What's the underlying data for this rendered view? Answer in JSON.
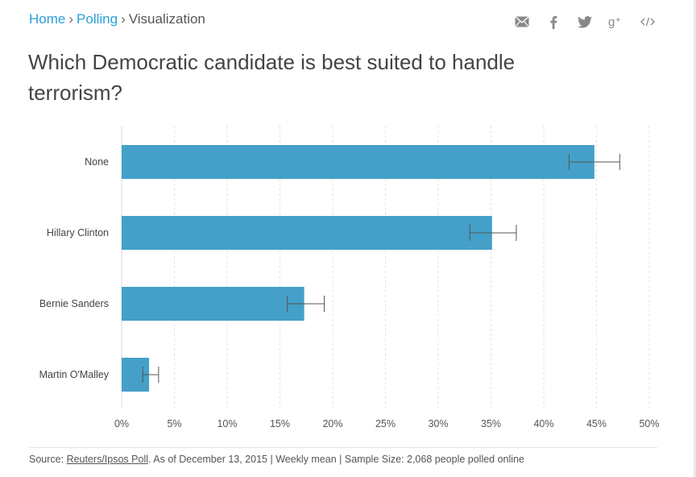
{
  "breadcrumb": {
    "home": "Home",
    "polling": "Polling",
    "current": "Visualization",
    "separator": "›"
  },
  "share_icons": [
    "email-icon",
    "facebook-icon",
    "twitter-icon",
    "google-plus-icon",
    "embed-code-icon"
  ],
  "title": "Which Democratic candidate is best suited to handle terrorism?",
  "chart_data": {
    "type": "bar",
    "orientation": "horizontal",
    "title": "Which Democratic candidate is best suited to handle terrorism?",
    "categories": [
      "None",
      "Hillary Clinton",
      "Bernie Sanders",
      "Martin O'Malley"
    ],
    "values": [
      44.8,
      35.1,
      17.3,
      2.6
    ],
    "error_low": [
      42.4,
      33.0,
      15.7,
      2.0
    ],
    "error_high": [
      47.2,
      37.4,
      19.2,
      3.5
    ],
    "xlim": [
      0,
      50
    ],
    "xticks": [
      "0%",
      "5%",
      "10%",
      "15%",
      "20%",
      "25%",
      "30%",
      "35%",
      "40%",
      "45%",
      "50%"
    ],
    "xtick_values": [
      0,
      5,
      10,
      15,
      20,
      25,
      30,
      35,
      40,
      45,
      50
    ],
    "grid": "vertical dashed",
    "bar_color": "#44a0c8",
    "xlabel": "",
    "ylabel": ""
  },
  "source": {
    "prefix": "Source: ",
    "link_text": "Reuters/Ipsos Poll",
    "suffix": ". As of December 13, 2015 | Weekly mean | Sample Size: 2,068 people polled online"
  }
}
